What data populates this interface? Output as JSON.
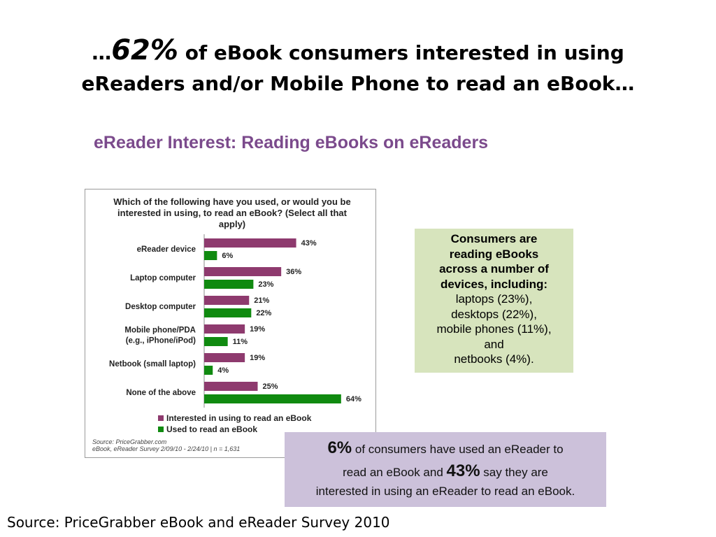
{
  "slide": {
    "title_prefix": "…",
    "title_pct": "62%",
    "title_rest": " of eBook consumers interested in using",
    "title_line2": "eReaders and/or Mobile Phone to read an eBook…",
    "subtitle": "eReader Interest: Reading eBooks on eReaders",
    "source": "Source: PriceGrabber eBook and eReader Survey 2010"
  },
  "chart_data": {
    "type": "bar",
    "orientation": "horizontal",
    "title": "Which of the following have you used, or would you be interested in using, to read an eBook? (Select all that apply)",
    "categories": [
      "eReader device",
      "Laptop computer",
      "Desktop computer",
      "Mobile phone/PDA\n(e.g., iPhone/iPod)",
      "Netbook (small laptop)",
      "None of the above"
    ],
    "series": [
      {
        "name": "Interested in using to read an eBook",
        "color": "#8e3a6e",
        "values": [
          43,
          36,
          21,
          19,
          19,
          25
        ]
      },
      {
        "name": "Used to read an eBook",
        "color": "#108a10",
        "values": [
          6,
          23,
          22,
          11,
          4,
          64
        ]
      }
    ],
    "xlim": [
      0,
      70
    ],
    "grid": false,
    "legend": "bottom",
    "source_line1": "Source: PriceGrabber.com",
    "source_line2": "eBook, eReader Survey 2/09/10 - 2/24/10 | n = 1,631"
  },
  "green_box": {
    "lead_lines": [
      "Consumers are",
      "reading eBooks",
      "across a number of",
      "devices, including:"
    ],
    "lines": [
      "laptops (23%),",
      "desktops (22%),",
      "mobile phones (11%),",
      "and",
      "netbooks (4%)."
    ]
  },
  "purple_box": {
    "pct1": "6%",
    "text1": " of consumers have used an eReader to",
    "text2": "read an eBook and ",
    "pct2": "43%",
    "text3": " say they are",
    "text4": "interested in using an eReader to read an eBook."
  }
}
